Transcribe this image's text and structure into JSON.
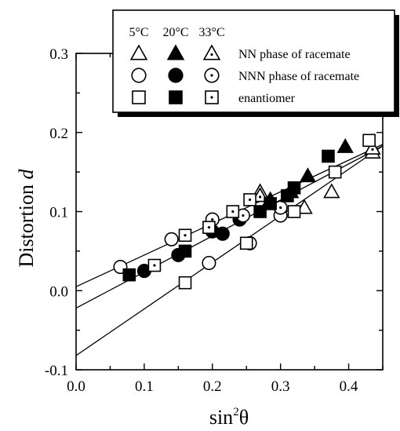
{
  "chart_data": {
    "type": "scatter",
    "xlabel": "sin²θ",
    "xlabel_base": "sin",
    "xlabel_sup": "2",
    "xlabel_tail": "θ",
    "ylabel": "Distortion d",
    "ylabel_main": "Distortion",
    "ylabel_var": "d",
    "xlim": [
      0.0,
      0.45
    ],
    "ylim": [
      -0.1,
      0.3
    ],
    "x_ticks": [
      "0.0",
      "0.1",
      "0.2",
      "0.3",
      "0.4"
    ],
    "y_ticks": [
      "-0.1",
      "0.0",
      "0.1",
      "0.2",
      "0.3"
    ],
    "legend_placement": "top-right",
    "legend_temps": [
      "5°C",
      "20°C",
      "33°C"
    ],
    "legend_rows": [
      "NN phase of racemate",
      "NNN phase of racemate",
      "enantiomer"
    ],
    "fit_lines": [
      {
        "x": [
          0.0,
          0.45
        ],
        "y": [
          0.005,
          0.185
        ]
      },
      {
        "x": [
          0.0,
          0.45
        ],
        "y": [
          -0.022,
          0.183
        ]
      },
      {
        "x": [
          0.0,
          0.45
        ],
        "y": [
          -0.082,
          0.183
        ]
      }
    ],
    "series": [
      {
        "phase": "NN phase of racemate",
        "temp": "5°C",
        "marker": "triangle",
        "fill": "open",
        "points": [
          [
            0.27,
            0.125
          ],
          [
            0.335,
            0.105
          ],
          [
            0.375,
            0.125
          ],
          [
            0.435,
            0.175
          ]
        ]
      },
      {
        "phase": "NN phase of racemate",
        "temp": "20°C",
        "marker": "triangle",
        "fill": "filled",
        "points": [
          [
            0.285,
            0.115
          ],
          [
            0.315,
            0.125
          ],
          [
            0.34,
            0.145
          ],
          [
            0.395,
            0.182
          ]
        ]
      },
      {
        "phase": "NN phase of racemate",
        "temp": "33°C",
        "marker": "triangle",
        "fill": "dotted",
        "points": [
          [
            0.27,
            0.12
          ],
          [
            0.435,
            0.18
          ]
        ]
      },
      {
        "phase": "NNN phase of racemate",
        "temp": "5°C",
        "marker": "circle",
        "fill": "open",
        "points": [
          [
            0.065,
            0.03
          ],
          [
            0.14,
            0.065
          ],
          [
            0.195,
            0.035
          ],
          [
            0.255,
            0.06
          ],
          [
            0.3,
            0.095
          ]
        ]
      },
      {
        "phase": "NNN phase of racemate",
        "temp": "20°C",
        "marker": "circle",
        "fill": "filled",
        "points": [
          [
            0.1,
            0.025
          ],
          [
            0.15,
            0.045
          ],
          [
            0.2,
            0.075
          ],
          [
            0.215,
            0.072
          ],
          [
            0.24,
            0.09
          ]
        ]
      },
      {
        "phase": "NNN phase of racemate",
        "temp": "33°C",
        "marker": "circle",
        "fill": "dotted",
        "points": [
          [
            0.2,
            0.09
          ],
          [
            0.245,
            0.095
          ],
          [
            0.3,
            0.105
          ]
        ]
      },
      {
        "phase": "enantiomer",
        "temp": "5°C",
        "marker": "square",
        "fill": "open",
        "points": [
          [
            0.16,
            0.01
          ],
          [
            0.25,
            0.06
          ],
          [
            0.32,
            0.1
          ],
          [
            0.38,
            0.15
          ],
          [
            0.43,
            0.19
          ]
        ]
      },
      {
        "phase": "enantiomer",
        "temp": "20°C",
        "marker": "square",
        "fill": "filled",
        "points": [
          [
            0.078,
            0.02
          ],
          [
            0.16,
            0.05
          ],
          [
            0.27,
            0.1
          ],
          [
            0.285,
            0.11
          ],
          [
            0.31,
            0.12
          ],
          [
            0.32,
            0.13
          ],
          [
            0.37,
            0.17
          ]
        ]
      },
      {
        "phase": "enantiomer",
        "temp": "33°C",
        "marker": "square",
        "fill": "dotted",
        "points": [
          [
            0.115,
            0.032
          ],
          [
            0.16,
            0.07
          ],
          [
            0.195,
            0.08
          ],
          [
            0.23,
            0.1
          ],
          [
            0.255,
            0.115
          ]
        ]
      }
    ]
  }
}
